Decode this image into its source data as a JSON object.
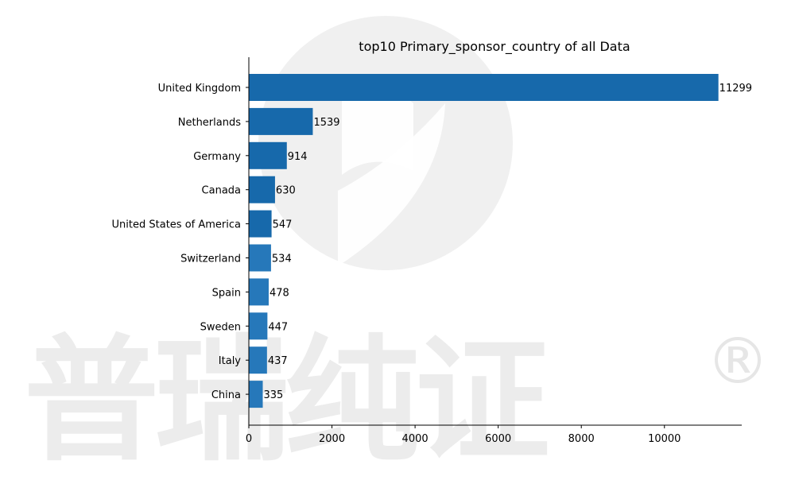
{
  "watermark": {
    "text": "普瑞纯证",
    "mark": "®"
  },
  "chart_data": {
    "type": "bar",
    "orientation": "horizontal",
    "title": "top10 Primary_sponsor_country of all Data",
    "xlabel": "",
    "ylabel": "",
    "categories": [
      "United Kingdom",
      "Netherlands",
      "Germany",
      "Canada",
      "United States of America",
      "Switzerland",
      "Spain",
      "Sweden",
      "Italy",
      "China"
    ],
    "values": [
      11299,
      1539,
      914,
      630,
      547,
      534,
      478,
      447,
      437,
      335
    ],
    "xlim": [
      0,
      11860
    ],
    "xticks": [
      0,
      2000,
      4000,
      6000,
      8000,
      10000
    ],
    "grid": false,
    "legend": "none",
    "colors": {
      "bar_dark": "#0f64a8",
      "bar_light": "#1f74b8",
      "axis": "#000000"
    }
  }
}
